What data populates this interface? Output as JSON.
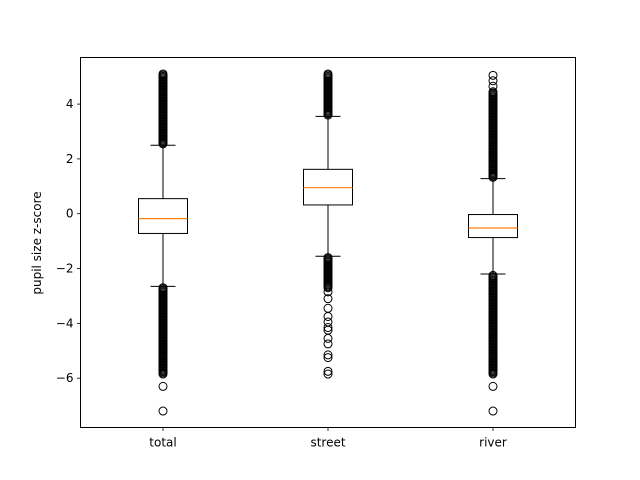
{
  "chart_data": {
    "type": "box",
    "title": "",
    "xlabel": "",
    "ylabel": "pupil size z-score",
    "ylim": [
      -7.8,
      5.7
    ],
    "yticks": [
      -6,
      -4,
      -2,
      0,
      2,
      4
    ],
    "ytick_labels": [
      "−6",
      "−4",
      "−2",
      "0",
      "2",
      "4"
    ],
    "categories": [
      "total",
      "street",
      "river"
    ],
    "grid": false,
    "colors": {
      "box": "#000000",
      "median": "#ff7f0e",
      "flier": "#000000"
    },
    "boxes": [
      {
        "label": "total",
        "whisker_low": -2.65,
        "q1": -0.72,
        "median": -0.18,
        "q3": 0.55,
        "whisker_high": 2.5,
        "outliers_low_dense": [
          -5.85,
          -2.7
        ],
        "outliers_low": [
          -6.3,
          -7.2
        ],
        "outliers_high_dense": [
          2.55,
          5.1
        ]
      },
      {
        "label": "street",
        "whisker_low": -1.55,
        "q1": 0.32,
        "median": 0.95,
        "q3": 1.62,
        "whisker_high": 3.55,
        "outliers_low_dense": [
          -2.7,
          -1.6
        ],
        "outliers_low": [
          -2.85,
          -3.1,
          -3.45,
          -3.75,
          -3.95,
          -4.15,
          -4.25,
          -4.55,
          -4.75,
          -5.15,
          -5.25,
          -5.75,
          -5.85
        ],
        "outliers_high_dense": [
          3.6,
          5.1
        ]
      },
      {
        "label": "river",
        "whisker_low": -2.2,
        "q1": -0.87,
        "median": -0.52,
        "q3": -0.03,
        "whisker_high": 1.28,
        "outliers_low_dense": [
          -5.85,
          -2.25
        ],
        "outliers_low": [
          -6.3,
          -7.2
        ],
        "outliers_high_dense": [
          1.33,
          4.45
        ],
        "outliers_high": [
          4.65,
          4.85,
          5.05
        ]
      }
    ]
  }
}
